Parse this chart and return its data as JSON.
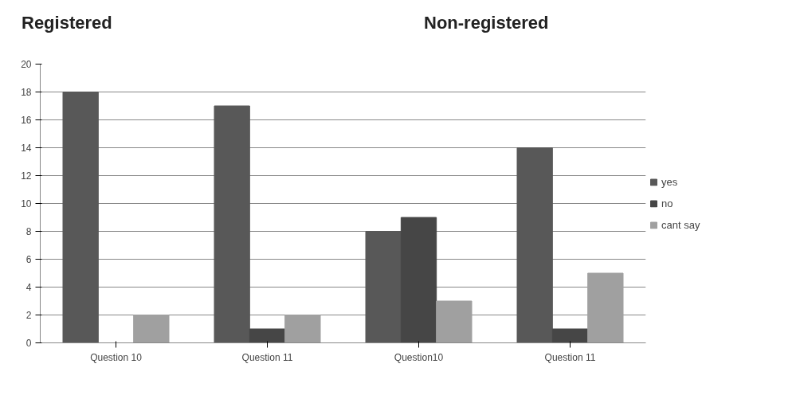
{
  "chart_data": {
    "type": "bar",
    "annotations": [
      "Registered",
      "Non-registered"
    ],
    "categories": [
      "Question 10",
      "Question 11",
      "Question10",
      "Question 11"
    ],
    "series": [
      {
        "name": "yes",
        "color": "#585858",
        "values": [
          18,
          17,
          8,
          14
        ]
      },
      {
        "name": "no",
        "color": "#464646",
        "values": [
          0,
          1,
          9,
          1
        ]
      },
      {
        "name": "cant say",
        "color": "#a0a0a0",
        "values": [
          2,
          2,
          3,
          5
        ]
      }
    ],
    "ylim": [
      0,
      20
    ],
    "yticks": [
      0,
      2,
      4,
      6,
      8,
      10,
      12,
      14,
      16,
      18,
      20
    ],
    "grid": "y",
    "legend": "right"
  }
}
